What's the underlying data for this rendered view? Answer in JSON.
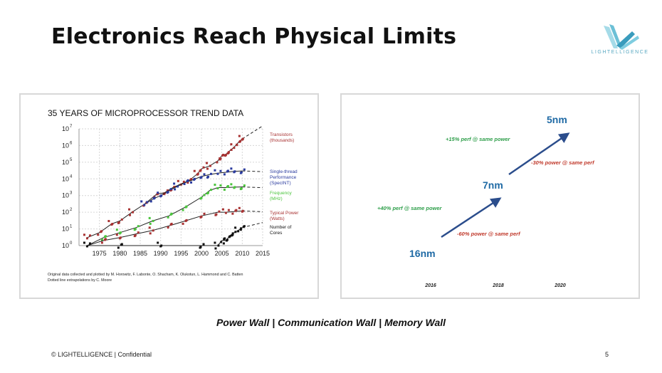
{
  "slide": {
    "title": "Electronics Reach Physical Limits",
    "logo_text": "LIGHTELLIGENCE",
    "walls_line": "Power Wall | Communication Wall | Memory Wall",
    "footer": "© LIGHTELLIGENCE | Confidential",
    "page_number": "5"
  },
  "colors": {
    "transistors": "#a83232",
    "single_thread": "#2a3b9e",
    "frequency": "#4ac43c",
    "power": "#a83232",
    "cores": "#111111",
    "node_blue": "#1f6aa5",
    "perf_green": "#2e9e4a",
    "power_red": "#c0392b"
  },
  "chart_data": [
    {
      "type": "scatter",
      "title": "35 YEARS OF MICROPROCESSOR TREND DATA",
      "y_scale": "log",
      "ylim": [
        1,
        10000000
      ],
      "xlim": [
        1970,
        2015
      ],
      "x_ticks": [
        "1975",
        "1980",
        "1985",
        "1990",
        "1995",
        "2000",
        "2005",
        "2010",
        "2015"
      ],
      "y_ticks": [
        "10",
        "10",
        "10",
        "10",
        "10",
        "10",
        "10",
        "10"
      ],
      "y_tick_exponents": [
        "0",
        "1",
        "2",
        "3",
        "4",
        "5",
        "6",
        "7"
      ],
      "legend_placement": "right",
      "series": [
        {
          "name": "Transistors (thousands)",
          "label_lines": [
            "Transistors",
            "(thousands)"
          ],
          "color": "#a83232",
          "x": [
            1972,
            1975,
            1978,
            1980,
            1983,
            1986,
            1989,
            1991,
            1993,
            1995,
            1997,
            1999,
            2000,
            2002,
            2004,
            2005,
            2006,
            2007,
            2008,
            2009,
            2010
          ],
          "y": [
            3,
            6,
            20,
            30,
            100,
            300,
            1200,
            1500,
            3000,
            5000,
            8000,
            20000,
            40000,
            60000,
            120000,
            250000,
            300000,
            500000,
            800000,
            1500000,
            2500000
          ]
        },
        {
          "name": "Single-thread Performance (SpecINT)",
          "label_lines": [
            "Single-thread",
            "Performance",
            "(SpecINT)"
          ],
          "color": "#2a3b9e",
          "x": [
            1986,
            1988,
            1990,
            1992,
            1994,
            1996,
            1998,
            2000,
            2002,
            2004,
            2006,
            2008,
            2010
          ],
          "y": [
            300,
            600,
            1000,
            2000,
            3500,
            6000,
            9000,
            14000,
            18000,
            22000,
            25000,
            28000,
            30000
          ]
        },
        {
          "name": "Frequency (MHz)",
          "label_lines": [
            "Frequency",
            "(MHz)"
          ],
          "color": "#4ac43c",
          "x": [
            1972,
            1976,
            1980,
            1984,
            1988,
            1992,
            1996,
            2000,
            2002,
            2004,
            2006,
            2008,
            2010
          ],
          "y": [
            1,
            3,
            6,
            12,
            30,
            60,
            200,
            800,
            2000,
            3000,
            3000,
            3200,
            3300
          ]
        },
        {
          "name": "Typical Power (Watts)",
          "label_lines": [
            "Typical Power",
            "(Watts)"
          ],
          "color": "#a83232",
          "x": [
            1972,
            1976,
            1980,
            1984,
            1988,
            1992,
            1996,
            2000,
            2004,
            2006,
            2008,
            2010
          ],
          "y": [
            1,
            2,
            3,
            5,
            8,
            15,
            30,
            60,
            100,
            100,
            110,
            120
          ]
        },
        {
          "name": "Number of Cores",
          "label_lines": [
            "Number of",
            "Cores"
          ],
          "color": "#111111",
          "x": [
            1972,
            1980,
            1990,
            2000,
            2004,
            2005,
            2006,
            2007,
            2008,
            2009,
            2010
          ],
          "y": [
            1,
            1,
            1,
            1,
            1,
            2,
            2,
            4,
            6,
            8,
            12
          ]
        }
      ],
      "credit_lines": [
        "Original data collected and plotted by M. Horowitz, F. Labonte, O. Shacham, K. Olukotun, L. Hammond and C. Batten",
        "Dotted line extrapolations by C. Moore"
      ]
    },
    {
      "type": "line",
      "x_ticks": [
        "2016",
        "2018",
        "2020"
      ],
      "series": [
        {
          "points": [
            {
              "x": "2016",
              "label": "16nm"
            },
            {
              "x": "2018",
              "label": "7nm"
            },
            {
              "x": "2020",
              "label": "5nm"
            }
          ]
        }
      ],
      "annotations": [
        {
          "text": "+40% perf @ same power",
          "color": "#2e9e4a"
        },
        {
          "text": "-60% power @ same perf",
          "color": "#c0392b"
        },
        {
          "text": "+15% perf @ same power",
          "color": "#2e9e4a"
        },
        {
          "text": "-30% power @ same perf",
          "color": "#c0392b"
        }
      ]
    }
  ]
}
